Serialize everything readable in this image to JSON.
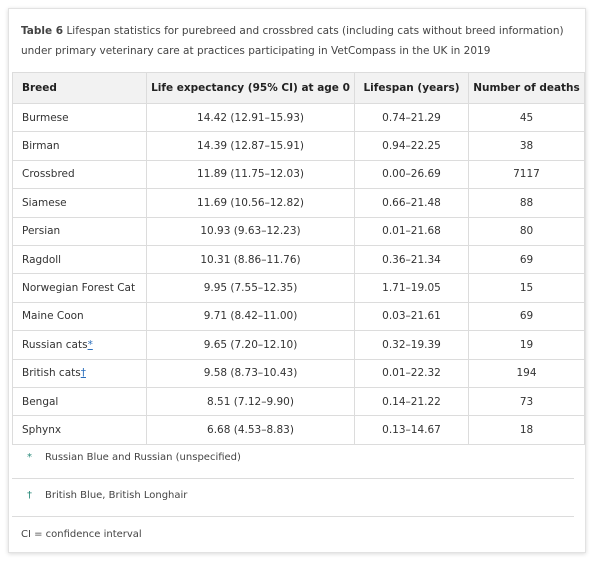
{
  "caption": {
    "label": "Table 6",
    "text": "Lifespan statistics for purebreed and crossbred cats (including cats without breed information) under primary veterinary care at practices participating in VetCompass in the UK in 2019"
  },
  "table": {
    "headers": [
      "Breed",
      "Life expectancy (95% CI) at age 0",
      "Lifespan (years)",
      "Number of deaths"
    ],
    "rows": [
      {
        "breed": "Burmese",
        "life": "14.42 (12.91–15.93)",
        "span": "0.74–21.29",
        "deaths": 45
      },
      {
        "breed": "Birman",
        "life": "14.39 (12.87–15.91)",
        "span": "0.94–22.25",
        "deaths": 38
      },
      {
        "breed": "Crossbred",
        "life": "11.89 (11.75–12.03)",
        "span": "0.00–26.69",
        "deaths": 7117
      },
      {
        "breed": "Siamese",
        "life": "11.69 (10.56–12.82)",
        "span": "0.66–21.48",
        "deaths": 88
      },
      {
        "breed": "Persian",
        "life": "10.93 (9.63–12.23)",
        "span": "0.01–21.68",
        "deaths": 80
      },
      {
        "breed": "Ragdoll",
        "life": "10.31 (8.86–11.76)",
        "span": "0.36–21.34",
        "deaths": 69
      },
      {
        "breed": "Norwegian Forest Cat",
        "life": "9.95 (7.55–12.35)",
        "span": "1.71–19.05",
        "deaths": 15
      },
      {
        "breed": "Maine Coon",
        "life": "9.71 (8.42–11.00)",
        "span": "0.03–21.61",
        "deaths": 69
      },
      {
        "breed": "Russian cats",
        "marker": "*",
        "life": "9.65 (7.20–12.10)",
        "span": "0.32–19.39",
        "deaths": 19
      },
      {
        "breed": "British cats",
        "marker": "†",
        "life": "9.58 (8.73–10.43)",
        "span": "0.01–22.32",
        "deaths": 194
      },
      {
        "breed": "Bengal",
        "life": "8.51 (7.12–9.90)",
        "span": "0.14–21.22",
        "deaths": 73
      },
      {
        "breed": "Sphynx",
        "life": "6.68 (4.53–8.83)",
        "span": "0.13–14.67",
        "deaths": 18
      }
    ]
  },
  "footnotes": [
    {
      "marker": "*",
      "text": "Russian Blue and Russian (unspecified)"
    },
    {
      "marker": "†",
      "text": "British Blue, British Longhair"
    },
    {
      "text": "CI = confidence interval"
    }
  ]
}
